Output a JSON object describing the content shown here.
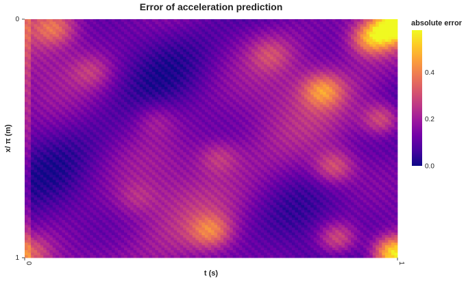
{
  "chart_data": {
    "type": "heatmap",
    "title": "Error of acceleration prediction",
    "xlabel": "t (s)",
    "ylabel": "x/ π (m)",
    "xlim": [
      0,
      1
    ],
    "ylim": [
      0,
      1
    ],
    "x_ticks": [
      "0",
      "1"
    ],
    "y_ticks": [
      "0",
      "1"
    ],
    "y_reversed": true,
    "colorscale": "plasma",
    "colorbar": {
      "title": "absolute error",
      "range": [
        0,
        0.58
      ],
      "ticks": [
        "0.0",
        "0.2",
        "0.4"
      ],
      "tick_values": [
        0.0,
        0.2,
        0.4
      ]
    },
    "grid_resolution": {
      "nx": 120,
      "ny": 95
    },
    "hotspots": [
      {
        "t": 0.99,
        "x": 0.03,
        "value": 0.56
      },
      {
        "t": 0.93,
        "x": 0.08,
        "value": 0.45
      },
      {
        "t": 0.08,
        "x": 0.04,
        "value": 0.32
      },
      {
        "t": 0.8,
        "x": 0.3,
        "value": 0.38
      },
      {
        "t": 0.96,
        "x": 0.42,
        "value": 0.36
      },
      {
        "t": 0.83,
        "x": 0.62,
        "value": 0.33
      },
      {
        "t": 0.52,
        "x": 0.58,
        "value": 0.26
      },
      {
        "t": 0.5,
        "x": 0.89,
        "value": 0.34
      },
      {
        "t": 0.84,
        "x": 0.92,
        "value": 0.36
      },
      {
        "t": 0.99,
        "x": 0.98,
        "value": 0.55
      },
      {
        "t": 0.01,
        "x": 0.98,
        "value": 0.3
      },
      {
        "t": 0.3,
        "x": 0.75,
        "value": 0.22
      },
      {
        "t": 0.18,
        "x": 0.22,
        "value": 0.24
      },
      {
        "t": 0.66,
        "x": 0.15,
        "value": 0.25
      },
      {
        "t": 0.35,
        "x": 0.42,
        "value": 0.22
      }
    ],
    "background_level": 0.14
  }
}
